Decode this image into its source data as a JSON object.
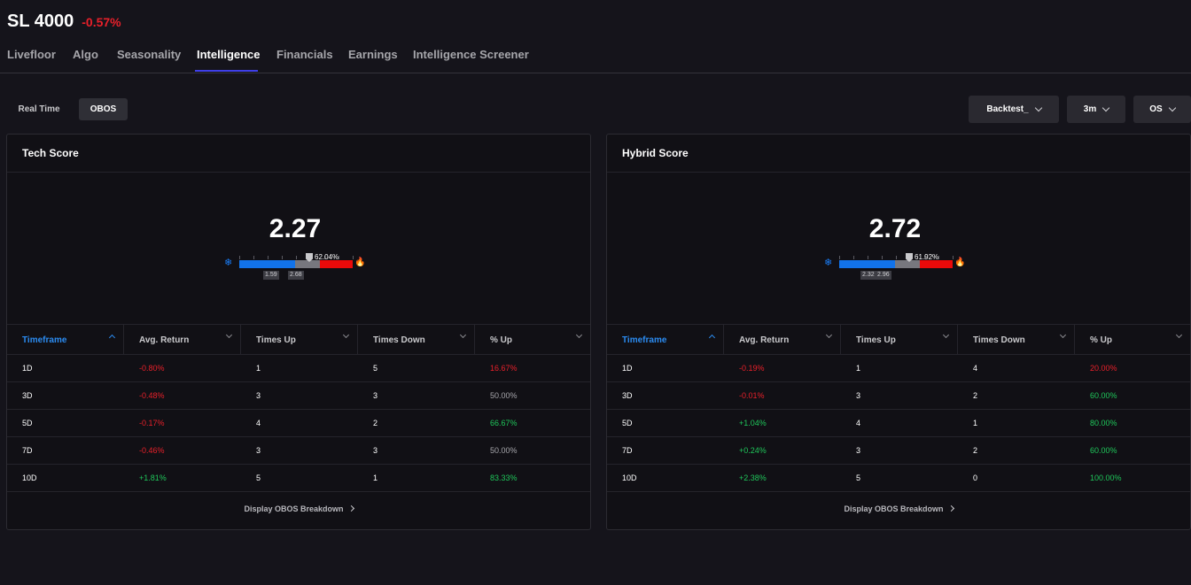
{
  "header": {
    "ticker": "SL 4000",
    "change": "-0.57%"
  },
  "tabs": [
    {
      "label": "Livefloor",
      "active": false
    },
    {
      "label": "Algo",
      "active": false
    },
    {
      "label": "Seasonality",
      "active": false
    },
    {
      "label": "Intelligence",
      "active": true
    },
    {
      "label": "Financials",
      "active": false
    },
    {
      "label": "Earnings",
      "active": false
    },
    {
      "label": "Intelligence Screener",
      "active": false
    }
  ],
  "mode_toggle": {
    "real_time": "Real Time",
    "obos": "OBOS",
    "selected": "OBOS"
  },
  "dropdowns": {
    "backtest": "Backtest_",
    "period": "3m",
    "signal": "OS"
  },
  "colors": {
    "accent": "#3f3fe8",
    "negative": "#e8202a",
    "positive": "#1fc65a",
    "cold": "#1273ea",
    "hot": "#ea0a0a"
  },
  "columns": [
    "Timeframe",
    "Avg. Return",
    "Times Up",
    "Times Down",
    "% Up"
  ],
  "cards": [
    {
      "title": "Tech Score",
      "score": "2.27",
      "gauge": {
        "percent_label": "62.04%",
        "fill_fraction": 0.6204,
        "low_label": "1.59",
        "high_label": "2.68",
        "cold_icon": "snowflake-icon",
        "hot_icon": "fire-icon"
      },
      "rows": [
        {
          "timeframe": "1D",
          "avg_return": "-0.80%",
          "times_up": "1",
          "times_down": "5",
          "pct_up": "16.67%"
        },
        {
          "timeframe": "3D",
          "avg_return": "-0.48%",
          "times_up": "3",
          "times_down": "3",
          "pct_up": "50.00%"
        },
        {
          "timeframe": "5D",
          "avg_return": "-0.17%",
          "times_up": "4",
          "times_down": "2",
          "pct_up": "66.67%"
        },
        {
          "timeframe": "7D",
          "avg_return": "-0.46%",
          "times_up": "3",
          "times_down": "3",
          "pct_up": "50.00%"
        },
        {
          "timeframe": "10D",
          "avg_return": "+1.81%",
          "times_up": "5",
          "times_down": "1",
          "pct_up": "83.33%"
        }
      ],
      "footer_link": "Display OBOS Breakdown"
    },
    {
      "title": "Hybrid Score",
      "score": "2.72",
      "gauge": {
        "percent_label": "61.92%",
        "fill_fraction": 0.6192,
        "low_label": "2.32",
        "high_label": "2.96",
        "cold_icon": "snowflake-icon",
        "hot_icon": "fire-icon"
      },
      "rows": [
        {
          "timeframe": "1D",
          "avg_return": "-0.19%",
          "times_up": "1",
          "times_down": "4",
          "pct_up": "20.00%"
        },
        {
          "timeframe": "3D",
          "avg_return": "-0.01%",
          "times_up": "3",
          "times_down": "2",
          "pct_up": "60.00%"
        },
        {
          "timeframe": "5D",
          "avg_return": "+1.04%",
          "times_up": "4",
          "times_down": "1",
          "pct_up": "80.00%"
        },
        {
          "timeframe": "7D",
          "avg_return": "+0.24%",
          "times_up": "3",
          "times_down": "2",
          "pct_up": "60.00%"
        },
        {
          "timeframe": "10D",
          "avg_return": "+2.38%",
          "times_up": "5",
          "times_down": "0",
          "pct_up": "100.00%"
        }
      ],
      "footer_link": "Display OBOS Breakdown"
    }
  ]
}
